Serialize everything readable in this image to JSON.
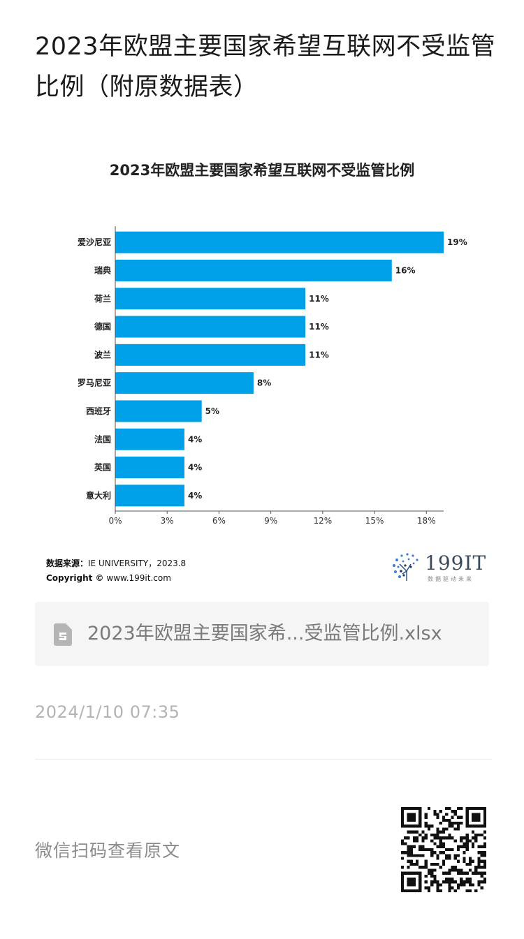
{
  "page": {
    "title": "2023年欧盟主要国家希望互联网不受监管比例（附原数据表）"
  },
  "chart_data": {
    "type": "bar",
    "orientation": "horizontal",
    "title": "2023年欧盟主要国家希望互联网不受监管比例",
    "categories": [
      "爱沙尼亚",
      "瑞典",
      "荷兰",
      "德国",
      "波兰",
      "罗马尼亚",
      "西班牙",
      "法国",
      "英国",
      "意大利"
    ],
    "values": [
      19,
      16,
      11,
      11,
      11,
      8,
      5,
      4,
      4,
      4
    ],
    "value_labels": [
      "19%",
      "16%",
      "11%",
      "11%",
      "11%",
      "8%",
      "5%",
      "4%",
      "4%",
      "4%"
    ],
    "xlim": [
      0,
      19
    ],
    "x_ticks": [
      0,
      3,
      6,
      9,
      12,
      15,
      18
    ],
    "x_tick_labels": [
      "0%",
      "3%",
      "6%",
      "9%",
      "12%",
      "15%",
      "18%"
    ],
    "bar_color": "#00a0e9",
    "grid": false,
    "legend": false
  },
  "source": {
    "label": "数据来源：",
    "value": "IE UNIVERSITY，2023.8",
    "copyright_label": "Copyright ©",
    "copyright_value": "www.199it.com"
  },
  "logo": {
    "text": "199IT",
    "sub": "数据驱动未来"
  },
  "attachment": {
    "file_name": "2023年欧盟主要国家希...受监管比例.xlsx",
    "icon": "spreadsheet-file-icon"
  },
  "meta": {
    "timestamp": "2024/1/10 07:35"
  },
  "footer": {
    "wechat_hint": "微信扫码查看原文",
    "qr_icon": "qr-code-icon"
  }
}
